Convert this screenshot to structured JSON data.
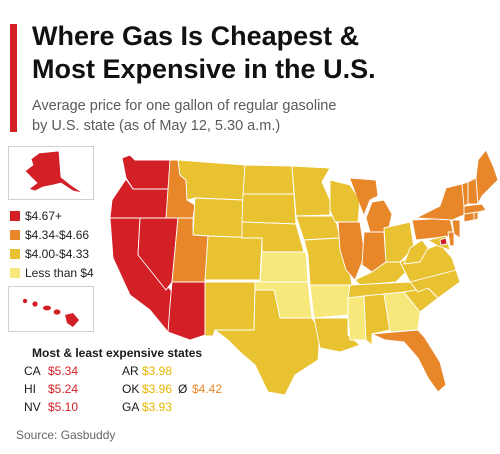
{
  "header": {
    "title_line1": "Where Gas Is Cheapest &",
    "title_line2": "Most Expensive in the U.S.",
    "subtitle_line1": "Average price for one gallon of regular gasoline",
    "subtitle_line2": "by U.S. state (as of May 12, 5.30 a.m.)"
  },
  "colors": {
    "accent": "#d32026",
    "tier_highest": "#d32026",
    "tier_high": "#e8862a",
    "tier_mid": "#e8c230",
    "tier_low": "#f6e87a",
    "borders": "#ffffff"
  },
  "legend": [
    {
      "label": "$4.67+",
      "color": "#d32026"
    },
    {
      "label": "$4.34-$4.66",
      "color": "#e8862a"
    },
    {
      "label": "$4.00-$4.33",
      "color": "#e8c230"
    },
    {
      "label": "Less than $4",
      "color": "#f6e87a"
    }
  ],
  "extremes": {
    "title": "Most & least expensive states",
    "most": [
      {
        "state": "CA",
        "price": "$5.34"
      },
      {
        "state": "HI",
        "price": "$5.24"
      },
      {
        "state": "NV",
        "price": "$5.10"
      }
    ],
    "least": [
      {
        "state": "AR",
        "price": "$3.98"
      },
      {
        "state": "OK",
        "price": "$3.96"
      },
      {
        "state": "GA",
        "price": "$3.93"
      }
    ],
    "average": {
      "symbol": "Ø",
      "price": "$4.42"
    }
  },
  "source": "Source: Gasbuddy"
}
